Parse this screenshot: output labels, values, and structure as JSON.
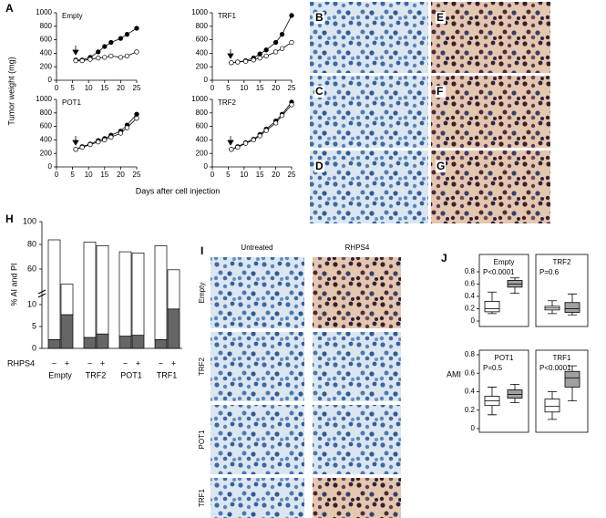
{
  "panel_labels": [
    "A",
    "B",
    "C",
    "D",
    "E",
    "F",
    "G",
    "H",
    "I",
    "J"
  ],
  "micrographs": {
    "headers": [
      "Untreated",
      "RHPS4"
    ],
    "rows": [
      "Empty",
      "TRF2",
      "POT1",
      "TRF1"
    ]
  },
  "chart_data": [
    {
      "type": "line",
      "title": "Empty",
      "ylabel": "Tumor weight (mg)",
      "xlabel": "Days after cell injection",
      "x": [
        6,
        8,
        10.5,
        13,
        15,
        17,
        20,
        22,
        25
      ],
      "xlim": [
        0,
        25
      ],
      "xticks": [
        0,
        5,
        10,
        15,
        20,
        25
      ],
      "ylim": [
        0,
        1000
      ],
      "yticks": [
        0,
        200,
        400,
        600,
        800,
        1000
      ],
      "series": [
        {
          "color": "#000000",
          "values": [
            300,
            300,
            340,
            420,
            500,
            560,
            620,
            680,
            770
          ]
        },
        {
          "color": "#ffffff",
          "values": [
            290,
            290,
            310,
            330,
            340,
            360,
            340,
            360,
            420
          ]
        }
      ]
    },
    {
      "type": "line",
      "title": "TRF1",
      "x": [
        6,
        8,
        10.5,
        13,
        15,
        17,
        20,
        22,
        25
      ],
      "xlim": [
        0,
        25
      ],
      "xticks": [
        0,
        5,
        10,
        15,
        20,
        25
      ],
      "ylim": [
        0,
        1000
      ],
      "yticks": [
        0,
        200,
        400,
        600,
        800,
        1000
      ],
      "series": [
        {
          "color": "#000000",
          "values": [
            260,
            270,
            290,
            330,
            390,
            450,
            560,
            680,
            960
          ]
        },
        {
          "color": "#ffffff",
          "values": [
            260,
            270,
            280,
            300,
            330,
            360,
            420,
            470,
            560
          ]
        }
      ]
    },
    {
      "type": "line",
      "title": "POT1",
      "x": [
        6,
        8,
        10.5,
        13,
        15,
        17,
        20,
        22,
        25
      ],
      "xlim": [
        0,
        25
      ],
      "xticks": [
        0,
        5,
        10,
        15,
        20,
        25
      ],
      "ylim": [
        0,
        1000
      ],
      "yticks": [
        0,
        200,
        400,
        600,
        800,
        1000
      ],
      "series": [
        {
          "color": "#000000",
          "values": [
            260,
            300,
            340,
            390,
            420,
            470,
            530,
            620,
            780
          ]
        },
        {
          "color": "#ffffff",
          "values": [
            260,
            290,
            330,
            370,
            400,
            440,
            500,
            580,
            720
          ]
        }
      ]
    },
    {
      "type": "line",
      "title": "TRF2",
      "x": [
        6,
        8,
        10.5,
        13,
        15,
        17,
        20,
        22,
        25
      ],
      "xlim": [
        0,
        25
      ],
      "xticks": [
        0,
        5,
        10,
        15,
        20,
        25
      ],
      "ylim": [
        0,
        1000
      ],
      "yticks": [
        0,
        200,
        400,
        600,
        800,
        1000
      ],
      "series": [
        {
          "color": "#000000",
          "values": [
            260,
            300,
            360,
            410,
            480,
            560,
            680,
            780,
            960
          ]
        },
        {
          "color": "#ffffff",
          "values": [
            260,
            290,
            350,
            400,
            460,
            540,
            650,
            760,
            920
          ]
        }
      ]
    },
    {
      "type": "bar",
      "stacked": true,
      "ylabel": "% AI and PI",
      "treatment_label": "RHPS4",
      "groups": [
        "Empty",
        "TRF2",
        "POT1",
        "TRF1"
      ],
      "categories": [
        "−",
        "+",
        "−",
        "+",
        "−",
        "+",
        "−",
        "+"
      ],
      "ylim": [
        0,
        100
      ],
      "yticks": [
        0,
        5,
        10,
        60,
        80,
        100
      ],
      "series": [
        {
          "color": "#666666",
          "values": [
            2,
            7.7,
            2.5,
            3.3,
            2.8,
            3,
            2,
            9
          ]
        },
        {
          "color": "#ffffff",
          "values": [
            82,
            31,
            79.5,
            75.7,
            71.2,
            70,
            77,
            50
          ]
        }
      ]
    },
    {
      "type": "box",
      "title": "Empty",
      "p_label": "P<0.0001",
      "ylabel": "AMI",
      "ylim": [
        0,
        0.8
      ],
      "yticks": [
        0,
        0.2,
        0.4,
        0.6,
        0.8
      ],
      "colors": [
        "#ffffff",
        "#a0a0a0"
      ],
      "values": [
        [
          0.12,
          0.15,
          0.2,
          0.32,
          0.47
        ],
        [
          0.45,
          0.55,
          0.6,
          0.66,
          0.7
        ]
      ]
    },
    {
      "type": "box",
      "title": "TRF2",
      "p_label": "P=0.6",
      "ylim": [
        0,
        0.8
      ],
      "colors": [
        "#ffffff",
        "#a0a0a0"
      ],
      "values": [
        [
          0.12,
          0.18,
          0.21,
          0.24,
          0.33
        ],
        [
          0.1,
          0.14,
          0.2,
          0.3,
          0.44
        ]
      ]
    },
    {
      "type": "box",
      "title": "POT1",
      "p_label": "P=0.5",
      "ylim": [
        0,
        0.8
      ],
      "yticks": [
        0,
        0.2,
        0.4,
        0.6,
        0.8
      ],
      "colors": [
        "#ffffff",
        "#a0a0a0"
      ],
      "values": [
        [
          0.15,
          0.25,
          0.3,
          0.35,
          0.45
        ],
        [
          0.28,
          0.33,
          0.37,
          0.42,
          0.48
        ]
      ]
    },
    {
      "type": "box",
      "title": "TRF1",
      "p_label": "P<0.0001",
      "ylim": [
        0,
        0.8
      ],
      "colors": [
        "#ffffff",
        "#a0a0a0"
      ],
      "values": [
        [
          0.1,
          0.18,
          0.24,
          0.32,
          0.4
        ],
        [
          0.3,
          0.45,
          0.55,
          0.62,
          0.68
        ]
      ]
    }
  ]
}
